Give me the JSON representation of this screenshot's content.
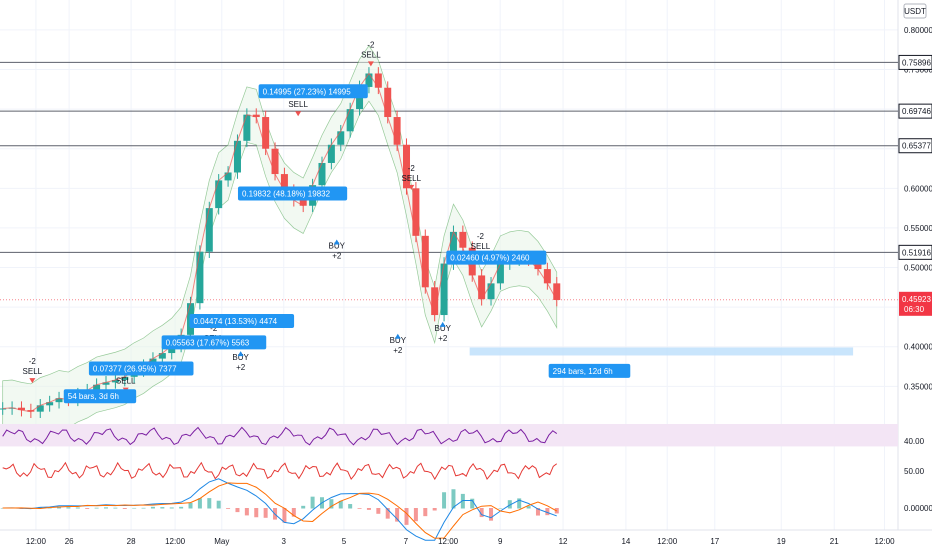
{
  "currency": "USDT",
  "chart_data": [
    {
      "type": "candlestick",
      "title": "",
      "ylim": [
        0.31,
        0.81
      ],
      "y_ticks": [
        "0.80000",
        "0.75000",
        "0.70000",
        "0.65000",
        "0.60000",
        "0.55000",
        "0.50000",
        "0.45000",
        "0.40000",
        "0.35000"
      ],
      "x_ticks": [
        "12:00",
        "26",
        "28",
        "12:00",
        "May",
        "3",
        "5",
        "7",
        "12:00",
        "9",
        "12",
        "14",
        "12:00",
        "17",
        "19",
        "21",
        "12:00"
      ],
      "price_levels": [
        {
          "label": "0.75896",
          "value": 0.75896
        },
        {
          "label": "0.69746",
          "value": 0.69746
        },
        {
          "label": "0.65377",
          "value": 0.65377
        },
        {
          "label": "0.51916",
          "value": 0.51916
        }
      ],
      "last_price": {
        "label": "0.45923",
        "countdown": "06:30",
        "value": 0.45923
      },
      "close_series": [
        0.322,
        0.323,
        0.32,
        0.318,
        0.326,
        0.33,
        0.335,
        0.333,
        0.34,
        0.345,
        0.352,
        0.355,
        0.358,
        0.362,
        0.37,
        0.376,
        0.385,
        0.392,
        0.401,
        0.415,
        0.455,
        0.52,
        0.575,
        0.61,
        0.62,
        0.66,
        0.693,
        0.69,
        0.65,
        0.618,
        0.597,
        0.585,
        0.578,
        0.604,
        0.632,
        0.655,
        0.672,
        0.7,
        0.728,
        0.745,
        0.727,
        0.69,
        0.655,
        0.6,
        0.54,
        0.475,
        0.44,
        0.505,
        0.545,
        0.525,
        0.49,
        0.46,
        0.48,
        0.505,
        0.51,
        0.512,
        0.51,
        0.498,
        0.48,
        0.459
      ],
      "annotations": [
        {
          "text": "-2 SELL",
          "kind": "sell",
          "x": 0.036,
          "y": 0.378
        },
        {
          "text": "-2 SELL",
          "kind": "sell",
          "x": 0.14,
          "y": 0.366
        },
        {
          "text": "-2 SELL",
          "kind": "sell",
          "x": 0.238,
          "y": 0.42
        },
        {
          "text": "BUY +2",
          "kind": "buy",
          "x": 0.268,
          "y": 0.383
        },
        {
          "text": "-2 SELL",
          "kind": "sell",
          "x": 0.332,
          "y": 0.715
        },
        {
          "text": "BUY +2",
          "kind": "buy",
          "x": 0.375,
          "y": 0.524
        },
        {
          "text": "-2 SELL",
          "kind": "sell",
          "x": 0.413,
          "y": 0.778
        },
        {
          "text": "-2 SELL",
          "kind": "sell",
          "x": 0.458,
          "y": 0.622
        },
        {
          "text": "BUY +2",
          "kind": "buy",
          "x": 0.443,
          "y": 0.405
        },
        {
          "text": "BUY +2",
          "kind": "buy",
          "x": 0.493,
          "y": 0.42
        },
        {
          "text": "-2 SELL",
          "kind": "sell",
          "x": 0.535,
          "y": 0.536
        }
      ],
      "measure_labels": [
        {
          "text": "54 bars, 3d 6h",
          "x": 0.071,
          "y": 0.335
        },
        {
          "text": "0.07377 (26.95%) 7377",
          "x": 0.099,
          "y": 0.37
        },
        {
          "text": "0.05563 (17.67%) 5563",
          "x": 0.18,
          "y": 0.403
        },
        {
          "text": "0.04474 (13.53%) 4474",
          "x": 0.211,
          "y": 0.43
        },
        {
          "text": "0.19832 (48.18%) 19832",
          "x": 0.265,
          "y": 0.591
        },
        {
          "text": "0.14995 (27.23%) 14995",
          "x": 0.288,
          "y": 0.72
        },
        {
          "text": "0.02460 (4.97%) 2460",
          "x": 0.497,
          "y": 0.51
        },
        {
          "text": "294 bars, 12d 6h",
          "x": 0.611,
          "y": 0.367
        }
      ]
    },
    {
      "type": "line",
      "title": "",
      "ylim": [
        20,
        70
      ],
      "y_ticks": [
        "40.00"
      ],
      "band": [
        30,
        70
      ]
    },
    {
      "type": "line",
      "title": "",
      "ylim": [
        30,
        70
      ],
      "y_ticks": [
        "50.00"
      ]
    },
    {
      "type": "line",
      "title": "",
      "ylim": [
        -0.03,
        0.03
      ],
      "y_ticks": [
        "0.00000"
      ]
    }
  ],
  "colors": {
    "up": "#26a69a",
    "down": "#ef5350",
    "band_fill": "#e8f5e9",
    "label_bg": "#2196f3",
    "rsi_line": "#7b1fa2",
    "rsi_band": "#f3e5f5",
    "osc_line": "#e53935",
    "macd_line": "#1e88e5",
    "signal_line": "#ff6d00",
    "level_line": "#787b86",
    "last_price_bg": "#f23645"
  }
}
